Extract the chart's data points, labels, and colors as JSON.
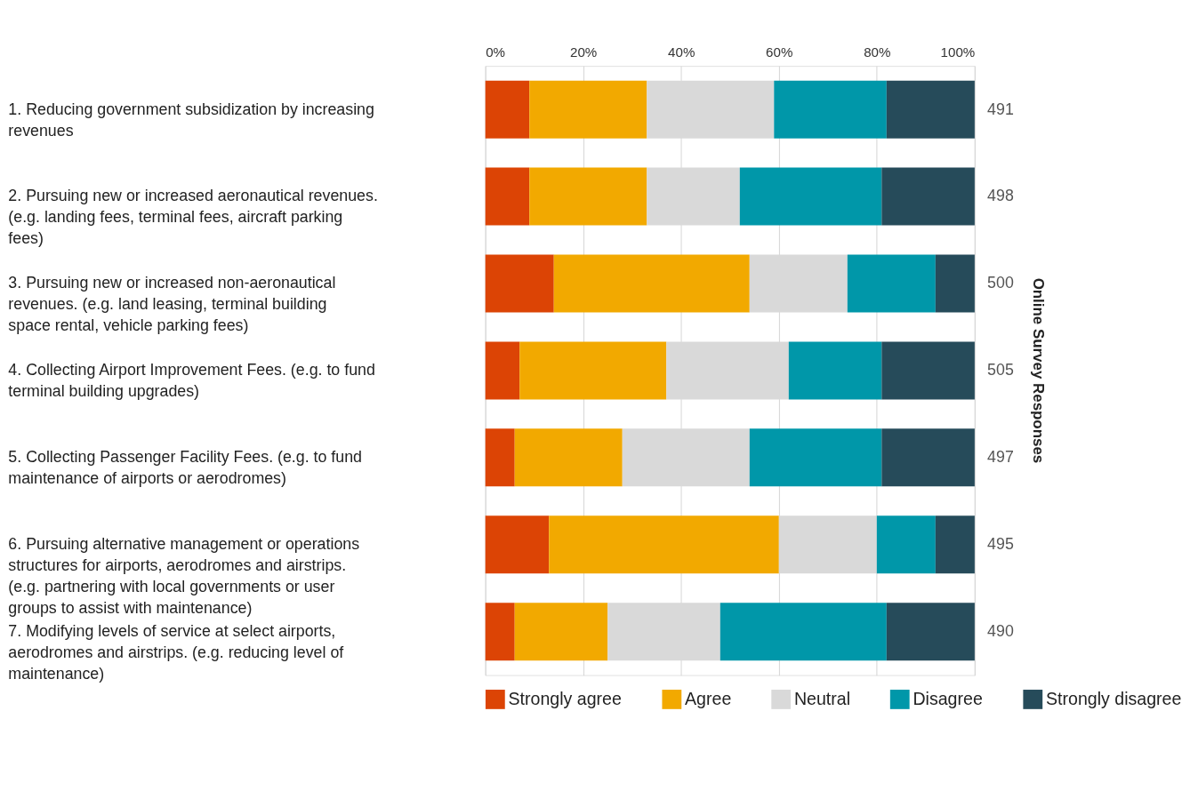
{
  "chart_data": {
    "type": "bar",
    "orientation": "horizontal",
    "stacked": true,
    "categories": [
      "1. Reducing government subsidization by increasing revenues",
      "2. Pursuing new or increased aeronautical revenues. (e.g. landing fees, terminal fees, aircraft parking fees)",
      "3. Pursuing new or increased non-aeronautical revenues. (e.g. land leasing, terminal building space rental, vehicle parking fees)",
      "4. Collecting Airport Improvement Fees. (e.g. to fund terminal building upgrades)",
      "5. Collecting Passenger Facility Fees. (e.g. to fund maintenance of airports or aerodromes)",
      "6. Pursuing alternative management or operations structures for airports, aerodromes and airstrips. (e.g. partnering with local governments or user groups to assist with maintenance)",
      "7. Modifying levels of service at select airports, aerodromes and airstrips. (e.g. reducing level of maintenance)"
    ],
    "series": [
      {
        "name": "Strongly agree",
        "color": "#dc4405",
        "values": [
          9,
          9,
          14,
          7,
          6,
          13,
          6
        ]
      },
      {
        "name": "Agree",
        "color": "#f2a900",
        "values": [
          24,
          24,
          40,
          30,
          22,
          47,
          19
        ]
      },
      {
        "name": "Neutral",
        "color": "#d9d9d9",
        "values": [
          26,
          19,
          20,
          25,
          26,
          20,
          23
        ]
      },
      {
        "name": "Disagree",
        "color": "#0097a9",
        "values": [
          23,
          29,
          18,
          19,
          27,
          12,
          34
        ]
      },
      {
        "name": "Strongly disagree",
        "color": "#264b5a",
        "values": [
          18,
          19,
          8,
          19,
          19,
          8,
          18
        ]
      }
    ],
    "xlim": [
      0,
      100
    ],
    "xticks": [
      {
        "value": 0,
        "label": "0%"
      },
      {
        "value": 20,
        "label": "20%"
      },
      {
        "value": 40,
        "label": "40%"
      },
      {
        "value": 60,
        "label": "60%"
      },
      {
        "value": 80,
        "label": "80%"
      },
      {
        "value": 100,
        "label": "100%"
      }
    ],
    "y2label": "Online Survey Responses",
    "annotations": [
      "491",
      "498",
      "500",
      "505",
      "497",
      "495",
      "490"
    ],
    "grid": "x",
    "legend": "bottom"
  }
}
